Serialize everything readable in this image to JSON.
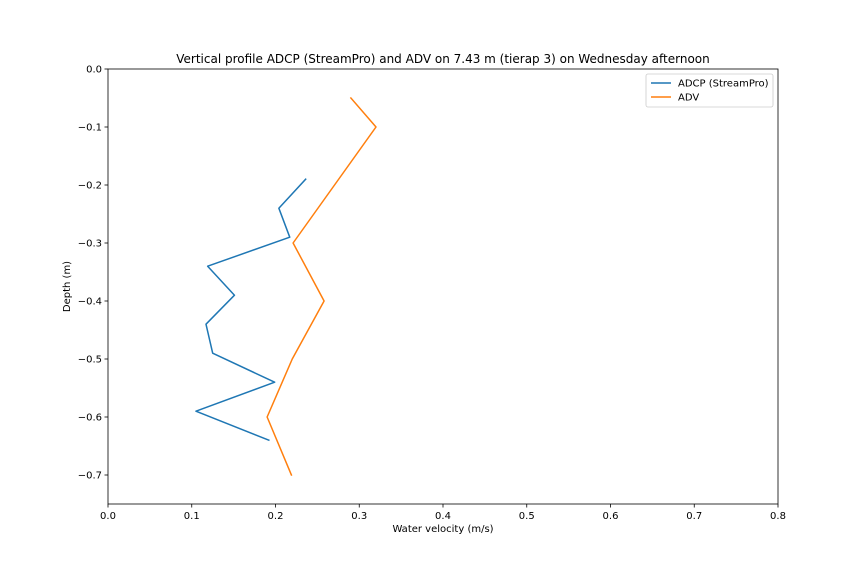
{
  "chart_data": {
    "type": "line",
    "title": "Vertical profile ADCP (StreamPro) and ADV on 7.43 m (tierap 3) on Wednesday afternoon",
    "xlabel": "Water velocity (m/s)",
    "ylabel": "Depth (m)",
    "xlim": [
      0.0,
      0.8
    ],
    "ylim": [
      -0.75,
      0.0
    ],
    "xticks": [
      "0.0",
      "0.1",
      "0.2",
      "0.3",
      "0.4",
      "0.5",
      "0.6",
      "0.7",
      "0.8"
    ],
    "yticks": [
      "0.0",
      "−0.1",
      "−0.2",
      "−0.3",
      "−0.4",
      "−0.5",
      "−0.6",
      "−0.7"
    ],
    "grid": false,
    "legend_position": "top-right",
    "series": [
      {
        "name": "ADCP (StreamPro)",
        "color": "#1f77b4",
        "points": [
          {
            "x": 0.236,
            "y": -0.19
          },
          {
            "x": 0.204,
            "y": -0.24
          },
          {
            "x": 0.217,
            "y": -0.29
          },
          {
            "x": 0.119,
            "y": -0.34
          },
          {
            "x": 0.151,
            "y": -0.39
          },
          {
            "x": 0.117,
            "y": -0.44
          },
          {
            "x": 0.125,
            "y": -0.49
          },
          {
            "x": 0.199,
            "y": -0.54
          },
          {
            "x": 0.105,
            "y": -0.59
          },
          {
            "x": 0.192,
            "y": -0.64
          }
        ]
      },
      {
        "name": "ADV",
        "color": "#ff7f0e",
        "points": [
          {
            "x": 0.29,
            "y": -0.05
          },
          {
            "x": 0.32,
            "y": -0.1
          },
          {
            "x": 0.221,
            "y": -0.3
          },
          {
            "x": 0.258,
            "y": -0.4
          },
          {
            "x": 0.22,
            "y": -0.5
          },
          {
            "x": 0.19,
            "y": -0.6
          },
          {
            "x": 0.219,
            "y": -0.7
          }
        ]
      }
    ]
  }
}
